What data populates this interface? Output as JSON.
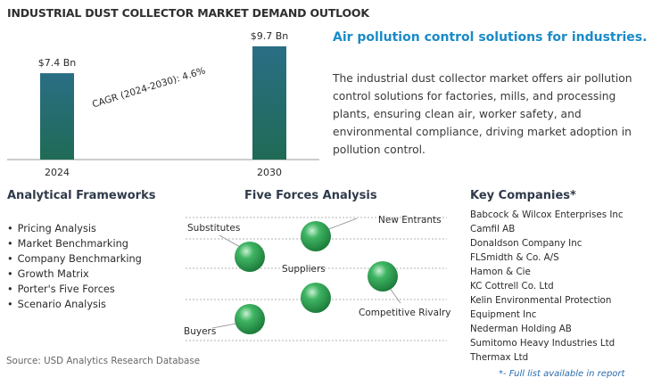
{
  "title": "INDUSTRIAL DUST COLLECTOR MARKET DEMAND OUTLOOK",
  "chart_data": {
    "type": "bar",
    "categories": [
      "2024",
      "2030"
    ],
    "values": [
      7.4,
      9.7
    ],
    "value_labels": [
      "$7.4 Bn",
      "$9.7 Bn"
    ],
    "annotation": "CAGR (2024-2030): 4.6%",
    "grid": false,
    "colors": {
      "bar_top": "#2a6e85",
      "bar_bottom": "#1f6b56"
    }
  },
  "headline": "Air pollution control solutions for industries.",
  "description": "The industrial dust collector market offers air pollution control solutions for factories, mills, and processing plants, ensuring clean air, worker safety, and environmental compliance, driving market adoption in pollution control.",
  "frameworks": {
    "heading": "Analytical Frameworks",
    "items": [
      "Pricing Analysis",
      "Market Benchmarking",
      "Company Benchmarking",
      "Growth Matrix",
      "Porter's Five Forces",
      "Scenario Analysis"
    ]
  },
  "five_forces": {
    "heading": "Five Forces Analysis",
    "labels": {
      "substitutes": "Substitutes",
      "new_entrants": "New Entrants",
      "suppliers": "Suppliers",
      "competitive_rivalry": "Competitive Rivalry",
      "buyers": "Buyers"
    },
    "sphere_color": "#2e9e52"
  },
  "key_companies": {
    "heading": "Key Companies*",
    "items": [
      "Babcock & Wilcox Enterprises Inc",
      "Camfil AB",
      "Donaldson Company Inc",
      "FLSmidth & Co. A/S",
      "Hamon & Cie",
      "KC Cottrell Co. Ltd",
      "Kelin Environmental Protection",
      "Equipment Inc",
      "Nederman Holding AB",
      "Sumitomo Heavy Industries Ltd",
      "Thermax Ltd"
    ]
  },
  "source": "Source: USD Analytics Research Database",
  "footnote": "*- Full list available in report"
}
